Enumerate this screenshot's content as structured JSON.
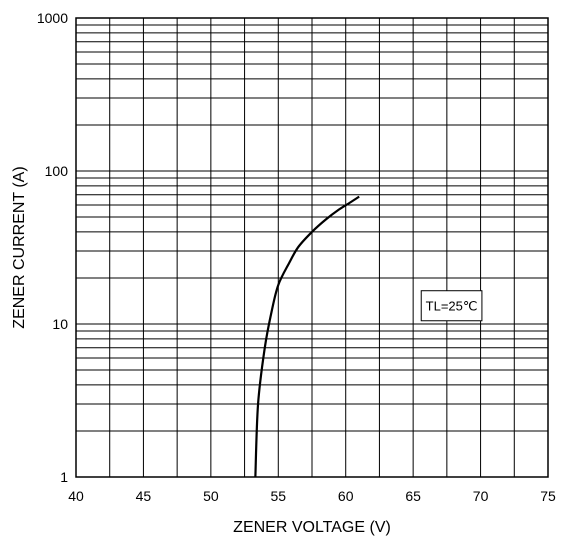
{
  "chart_data": {
    "type": "line",
    "xlabel": "ZENER VOLTAGE (V)",
    "ylabel": "ZENER CURRENT (A)",
    "xlim": [
      40,
      75
    ],
    "ylim": [
      1,
      1000
    ],
    "y_scale": "log",
    "grid": true,
    "x_ticks": [
      "40",
      "45",
      "50",
      "55",
      "60",
      "65",
      "70",
      "75"
    ],
    "y_ticks": [
      "1",
      "10",
      "100",
      "1000"
    ],
    "annotation": "TL=25℃",
    "series": [
      {
        "x": [
          53.3,
          53.5,
          54.0,
          54.5,
          55.0,
          55.8,
          56.5,
          57.5,
          58.5,
          59.5,
          60.3,
          61.0
        ],
        "y": [
          1,
          3,
          7,
          12,
          18,
          25,
          32,
          40,
          48,
          56,
          62,
          68
        ]
      }
    ]
  }
}
